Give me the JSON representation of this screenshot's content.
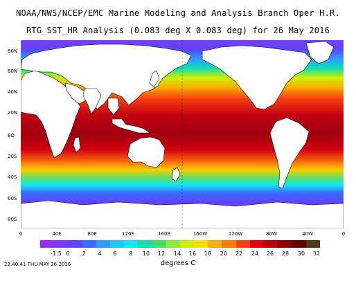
{
  "header": {
    "title_line1": "NOAA/NWS/NCEP/EMC Marine Modeling and Analysis Branch Oper H.R.",
    "title_line2": "RTG_SST_HR Analysis (0.083 deg X 0.083 deg) for 26 May 2016"
  },
  "map": {
    "lat_labels": [
      "80N",
      "60N",
      "40N",
      "20N",
      "EQ",
      "20S",
      "40S",
      "60S",
      "80S"
    ],
    "lon_labels": [
      "0",
      "40E",
      "80E",
      "120E",
      "160E",
      "160W",
      "120W",
      "80W",
      "40W",
      "0"
    ],
    "land_color": "#ffffff",
    "outline_color": "#000000"
  },
  "colorbar": {
    "units": "degrees C",
    "labels": [
      "-1.5",
      "0",
      "2",
      "4",
      "6",
      "8",
      "10",
      "12",
      "14",
      "16",
      "18",
      "20",
      "22",
      "24",
      "26",
      "28",
      "30",
      "32"
    ],
    "colors": [
      "#9a2cf0",
      "#7a3cf8",
      "#5a46ff",
      "#3c6cff",
      "#2c9cff",
      "#1ec8ff",
      "#10e8f0",
      "#10e0b0",
      "#40e060",
      "#90e840",
      "#d0f000",
      "#f8e000",
      "#f8b000",
      "#f88000",
      "#f84010",
      "#e00010",
      "#b80010",
      "#8c0000",
      "#600000",
      "#4a3c10"
    ]
  },
  "footer": {
    "timestamp": "22:40:41  THU MAY 26 2016"
  }
}
